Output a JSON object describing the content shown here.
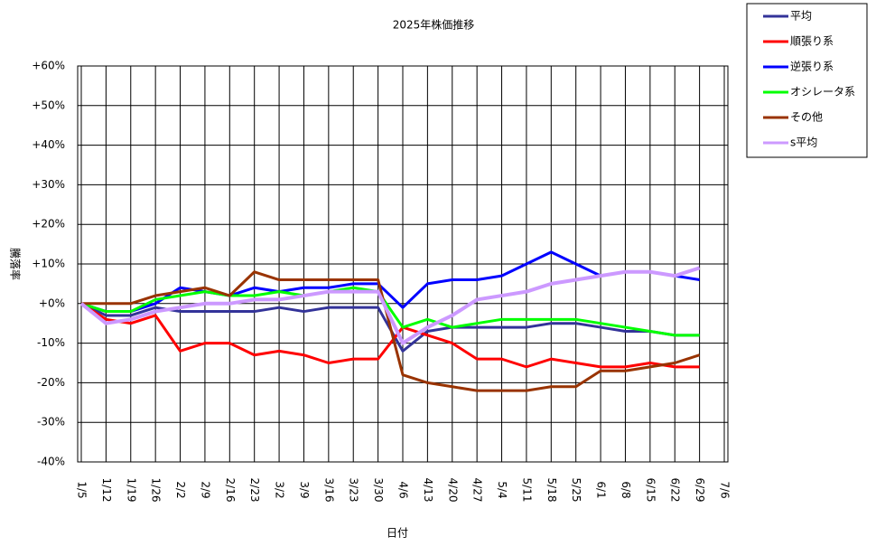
{
  "chart_data": {
    "type": "line",
    "title": "2025年株価推移",
    "x_label": "日付",
    "y_label": "騰落率",
    "categories": [
      "1/5",
      "1/12",
      "1/19",
      "1/26",
      "2/2",
      "2/9",
      "2/16",
      "2/23",
      "3/2",
      "3/9",
      "3/16",
      "3/23",
      "3/30",
      "4/6",
      "4/13",
      "4/20",
      "4/27",
      "5/4",
      "5/11",
      "5/18",
      "5/25",
      "6/1",
      "6/8",
      "6/15",
      "6/22",
      "6/29",
      "7/6"
    ],
    "ylim": [
      -40,
      60
    ],
    "yticks": [
      {
        "value": -40,
        "label": "-40%"
      },
      {
        "value": -30,
        "label": "-30%"
      },
      {
        "value": -20,
        "label": "-20%"
      },
      {
        "value": -10,
        "label": "-10%"
      },
      {
        "value": 0,
        "label": "+0%"
      },
      {
        "value": 10,
        "label": "+10%"
      },
      {
        "value": 20,
        "label": "+20%"
      },
      {
        "value": 30,
        "label": "+30%"
      },
      {
        "value": 40,
        "label": "+40%"
      },
      {
        "value": 50,
        "label": "+50%"
      },
      {
        "value": 60,
        "label": "+60%"
      }
    ],
    "grid": true,
    "series": [
      {
        "name": "平均",
        "color": "#333399",
        "width": 3,
        "values": [
          0,
          -3,
          -3,
          -1,
          -2,
          -2,
          -2,
          -2,
          -1,
          -2,
          -1,
          -1,
          -1,
          -12,
          -7,
          -6,
          -6,
          -6,
          -6,
          -5,
          -5,
          -6,
          -7,
          -7,
          -8,
          -8,
          null
        ]
      },
      {
        "name": "順張り系",
        "color": "#ff0000",
        "width": 3,
        "values": [
          0,
          -4,
          -5,
          -3,
          -12,
          -10,
          -10,
          -13,
          -12,
          -13,
          -15,
          -14,
          -14,
          -6,
          -8,
          -10,
          -14,
          -14,
          -16,
          -14,
          -15,
          -16,
          -16,
          -15,
          -16,
          -16,
          null
        ]
      },
      {
        "name": "逆張り系",
        "color": "#0000ff",
        "width": 3,
        "values": [
          0,
          -2,
          -2,
          0,
          4,
          3,
          2,
          4,
          3,
          4,
          4,
          5,
          5,
          -1,
          5,
          6,
          6,
          7,
          10,
          13,
          10,
          7,
          8,
          8,
          7,
          6,
          null
        ]
      },
      {
        "name": "オシレータ系",
        "color": "#00ff00",
        "width": 3,
        "values": [
          0,
          -2,
          -2,
          1,
          2,
          3,
          2,
          2,
          3,
          2,
          3,
          4,
          3,
          -6,
          -4,
          -6,
          -5,
          -4,
          -4,
          -4,
          -4,
          -5,
          -6,
          -7,
          -8,
          -8,
          null
        ]
      },
      {
        "name": "その他",
        "color": "#993300",
        "width": 3,
        "values": [
          0,
          0,
          0,
          2,
          3,
          4,
          2,
          8,
          6,
          6,
          6,
          6,
          6,
          -18,
          -20,
          -21,
          -22,
          -22,
          -22,
          -21,
          -21,
          -17,
          -17,
          -16,
          -15,
          -13,
          null
        ]
      },
      {
        "name": "s平均",
        "color": "#cc99ff",
        "width": 4,
        "values": [
          0,
          -5,
          -4,
          -2,
          -1,
          0,
          0,
          1,
          1,
          2,
          3,
          3,
          3,
          -10,
          -6,
          -3,
          1,
          2,
          3,
          5,
          6,
          7,
          8,
          8,
          7,
          9,
          null
        ]
      }
    ]
  }
}
